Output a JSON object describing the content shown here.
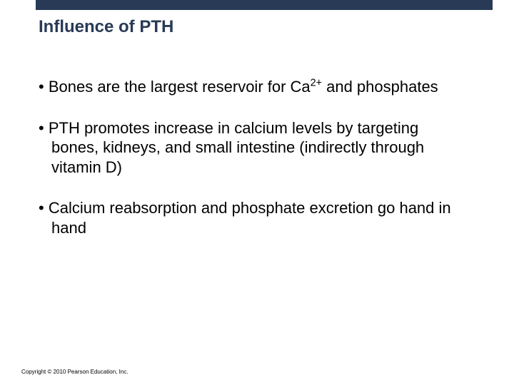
{
  "slide": {
    "title": "Influence of PTH",
    "bullets": [
      {
        "pre": "Bones are the largest reservoir for Ca",
        "sup": "2+",
        "post": " and phosphates"
      },
      {
        "text": "PTH promotes increase in calcium levels by targeting bones, kidneys, and small intestine (indirectly through vitamin D)"
      },
      {
        "text": "Calcium reabsorption and phosphate excretion go hand in hand"
      }
    ],
    "copyright": "Copyright © 2010 Pearson Education, Inc."
  },
  "colors": {
    "header_bar": "#283a56",
    "title_text": "#283a56",
    "body_text": "#000000",
    "background": "#ffffff"
  },
  "typography": {
    "title_fontsize": 24,
    "body_fontsize": 22,
    "copyright_fontsize": 8,
    "title_weight": "bold"
  }
}
